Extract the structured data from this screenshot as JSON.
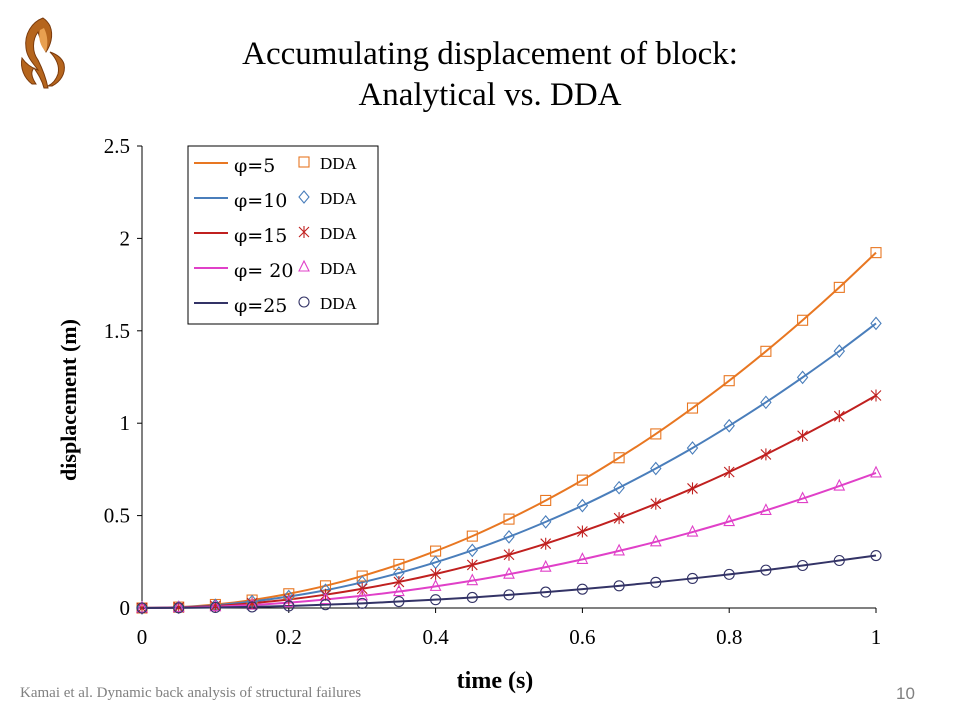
{
  "slide": {
    "title_line1": "Accumulating displacement of block:",
    "title_line2": "Analytical vs. DDA",
    "footer": "Kamai et al. Dynamic back analysis of structural failures",
    "page_number": "10",
    "logo_icon": "university-logo-icon"
  },
  "chart_data": {
    "type": "line",
    "title": "",
    "xlabel": "time (s)",
    "ylabel": "displacement (m)",
    "xlim": [
      0,
      1
    ],
    "ylim": [
      0,
      2.5
    ],
    "xticks": [
      "0",
      "0.2",
      "0.4",
      "0.6",
      "0.8",
      "1"
    ],
    "yticks": [
      "0",
      "0.5",
      "1",
      "1.5",
      "2",
      "2.5"
    ],
    "grid": false,
    "legend_position": "top-left",
    "x": [
      0,
      0.05,
      0.1,
      0.15,
      0.2,
      0.25,
      0.3,
      0.35,
      0.4,
      0.45,
      0.5,
      0.55,
      0.6,
      0.65,
      0.7,
      0.75,
      0.8,
      0.85,
      0.9,
      0.95,
      1.0
    ],
    "series": [
      {
        "name": "φ=5",
        "marker_label": "DDA",
        "marker": "square",
        "color": "#E87722",
        "values": [
          0,
          0.005,
          0.019,
          0.043,
          0.077,
          0.12,
          0.173,
          0.236,
          0.308,
          0.389,
          0.481,
          0.582,
          0.692,
          0.813,
          0.942,
          1.082,
          1.23,
          1.389,
          1.557,
          1.735,
          1.923
        ]
      },
      {
        "name": "φ=10",
        "marker_label": "DDA",
        "marker": "diamond",
        "color": "#4A7EBB",
        "values": [
          0,
          0.004,
          0.015,
          0.035,
          0.062,
          0.096,
          0.139,
          0.189,
          0.247,
          0.312,
          0.385,
          0.466,
          0.554,
          0.651,
          0.755,
          0.866,
          0.986,
          1.113,
          1.248,
          1.39,
          1.54
        ]
      },
      {
        "name": "φ=15",
        "marker_label": "DDA",
        "marker": "star",
        "color": "#C0201F",
        "values": [
          0,
          0.003,
          0.011,
          0.026,
          0.046,
          0.072,
          0.104,
          0.141,
          0.184,
          0.233,
          0.288,
          0.348,
          0.414,
          0.486,
          0.564,
          0.647,
          0.736,
          0.831,
          0.932,
          1.038,
          1.15
        ]
      },
      {
        "name": "φ= 20",
        "marker_label": "DDA",
        "marker": "triangle",
        "color": "#E040C8",
        "values": [
          0,
          0.002,
          0.007,
          0.016,
          0.029,
          0.046,
          0.066,
          0.089,
          0.117,
          0.148,
          0.183,
          0.221,
          0.263,
          0.309,
          0.358,
          0.411,
          0.468,
          0.528,
          0.592,
          0.66,
          0.731
        ]
      },
      {
        "name": "φ=25",
        "marker_label": "DDA",
        "marker": "circle",
        "color": "#333366",
        "values": [
          0,
          0.001,
          0.003,
          0.006,
          0.011,
          0.018,
          0.025,
          0.035,
          0.045,
          0.057,
          0.071,
          0.086,
          0.102,
          0.12,
          0.139,
          0.16,
          0.182,
          0.205,
          0.23,
          0.257,
          0.284
        ]
      }
    ]
  }
}
